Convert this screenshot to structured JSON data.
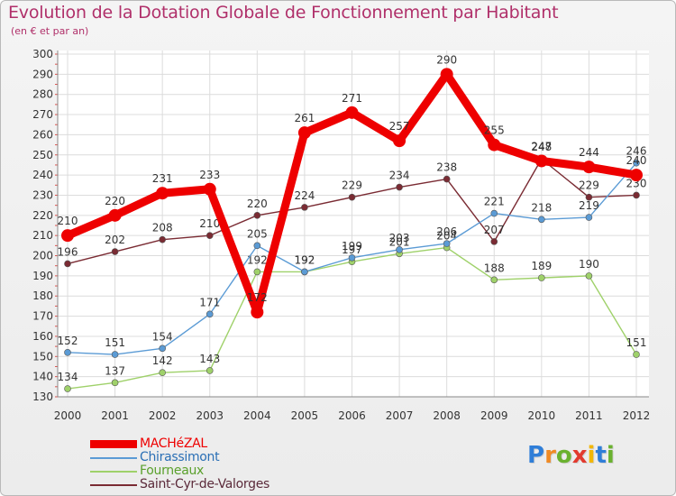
{
  "title": "Evolution de la Dotation Globale de Fonctionnement par Habitant",
  "subtitle": "(en € et par an)",
  "brand": {
    "letters": [
      "P",
      "r",
      "o",
      "x",
      "i",
      "t",
      "i"
    ],
    "colors": [
      "#2f7ed8",
      "#f08a24",
      "#6ab12f",
      "#e23a2e",
      "#f2b705",
      "#2f7ed8",
      "#6ab12f"
    ]
  },
  "chart_data": {
    "type": "line",
    "title": "Evolution de la Dotation Globale de Fonctionnement par Habitant",
    "ylabel": "(en € et par an)",
    "xlabel": "",
    "categories": [
      "2000",
      "2001",
      "2002",
      "2003",
      "2004",
      "2005",
      "2006",
      "2007",
      "2008",
      "2009",
      "2010",
      "2011",
      "2012"
    ],
    "ylim": [
      130,
      300
    ],
    "yticks": [
      130,
      140,
      150,
      160,
      170,
      180,
      190,
      200,
      210,
      220,
      230,
      240,
      250,
      260,
      270,
      280,
      290,
      300
    ],
    "grid": true,
    "legend": "bottom-left",
    "series": [
      {
        "name": "Saint-Cyr-de-Valorges",
        "color": "#7a2b33",
        "values": [
          196,
          202,
          208,
          210,
          220,
          224,
          229,
          234,
          238,
          207,
          248,
          229,
          230
        ]
      },
      {
        "name": "Fourneaux",
        "color": "#9fd16a",
        "values": [
          134,
          137,
          142,
          143,
          192,
          192,
          197,
          201,
          204,
          188,
          189,
          190,
          151
        ]
      },
      {
        "name": "Chirassimont",
        "color": "#5b9bd5",
        "values": [
          152,
          151,
          154,
          171,
          205,
          192,
          199,
          203,
          206,
          221,
          218,
          219,
          246
        ]
      },
      {
        "name": "MACHéZAL",
        "color": "#ee0000",
        "values": [
          210,
          220,
          231,
          233,
          172,
          261,
          271,
          257,
          290,
          255,
          247,
          244,
          240
        ]
      }
    ],
    "legend_order": [
      "MACHéZAL",
      "Chirassimont",
      "Fourneaux",
      "Saint-Cyr-de-Valorges"
    ]
  }
}
